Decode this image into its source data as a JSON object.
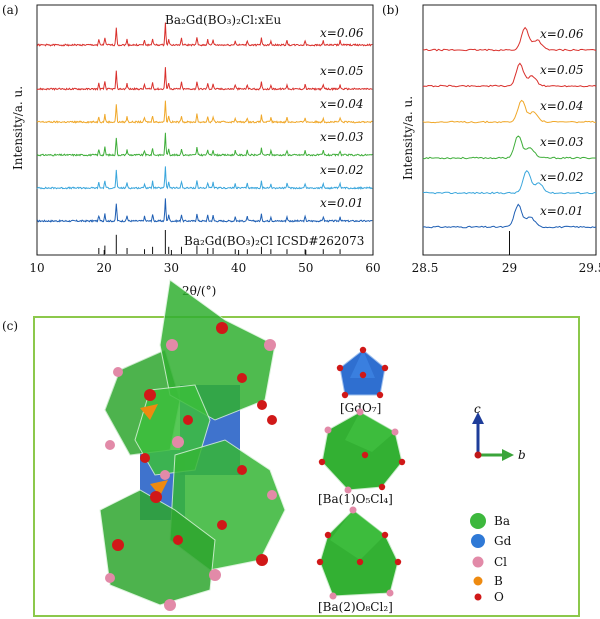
{
  "panel_a": {
    "label": "(a)",
    "title": "Ba₂Gd(BO₃)₂Cl:xEu",
    "reference_label": "Ba₂Gd(BO₃)₂Cl ICSD#262073",
    "xlabel": "2θ/(°)",
    "ylabel": "Intensity/a. u."
  },
  "panel_b": {
    "label": "(b)",
    "ylabel": "Intensity/a. u."
  },
  "panel_c": {
    "label": "(c)",
    "polyhedra": {
      "gd": "[GdO₇]",
      "ba1": "[Ba(1)O₅Cl₄]",
      "ba2": "[Ba(2)O₈Cl₂]"
    },
    "axes": {
      "c": "c",
      "b": "b"
    },
    "legend": [
      {
        "name": "Ba",
        "color": "#3db83d"
      },
      {
        "name": "Gd",
        "color": "#2f79d6"
      },
      {
        "name": "Cl",
        "color": "#e28aa8"
      },
      {
        "name": "B",
        "color": "#ee8a10"
      },
      {
        "name": "O",
        "color": "#d01818"
      }
    ]
  },
  "chart_data": [
    {
      "type": "line",
      "xlim": [
        10,
        60
      ],
      "xticks": [
        "10",
        "20",
        "30",
        "40",
        "50",
        "60"
      ],
      "series": [
        {
          "name": "x=0.01",
          "color": "#1f5fb4"
        },
        {
          "name": "x=0.02",
          "color": "#3aa6dc"
        },
        {
          "name": "x=0.03",
          "color": "#3fae3a"
        },
        {
          "name": "x=0.04",
          "color": "#f0a82a"
        },
        {
          "name": "x=0.05",
          "color": "#d9302c"
        },
        {
          "name": "x=0.06",
          "color": "#d9302c"
        }
      ],
      "reference_peaks": [
        {
          "x": 19.2,
          "h": 0.25
        },
        {
          "x": 20.1,
          "h": 0.35
        },
        {
          "x": 21.8,
          "h": 0.8
        },
        {
          "x": 23.4,
          "h": 0.25
        },
        {
          "x": 26.0,
          "h": 0.2
        },
        {
          "x": 27.2,
          "h": 0.3
        },
        {
          "x": 29.1,
          "h": 1.0
        },
        {
          "x": 29.6,
          "h": 0.3
        },
        {
          "x": 31.5,
          "h": 0.3
        },
        {
          "x": 33.8,
          "h": 0.35
        },
        {
          "x": 35.4,
          "h": 0.25
        },
        {
          "x": 36.2,
          "h": 0.25
        },
        {
          "x": 39.5,
          "h": 0.2
        },
        {
          "x": 41.3,
          "h": 0.2
        },
        {
          "x": 43.4,
          "h": 0.3
        },
        {
          "x": 44.8,
          "h": 0.2
        },
        {
          "x": 47.2,
          "h": 0.2
        },
        {
          "x": 49.9,
          "h": 0.2
        },
        {
          "x": 52.6,
          "h": 0.2
        },
        {
          "x": 55.1,
          "h": 0.2
        }
      ]
    },
    {
      "type": "line",
      "xlim": [
        28.5,
        29.5
      ],
      "xticks": [
        "28.5",
        "29",
        "29.5"
      ],
      "series": [
        {
          "name": "x=0.01",
          "color": "#1f5fb4",
          "peak": 29.05
        },
        {
          "name": "x=0.02",
          "color": "#3aa6dc",
          "peak": 29.1
        },
        {
          "name": "x=0.03",
          "color": "#3fae3a",
          "peak": 29.05
        },
        {
          "name": "x=0.04",
          "color": "#f0a82a",
          "peak": 29.07
        },
        {
          "name": "x=0.05",
          "color": "#d9302c",
          "peak": 29.06
        },
        {
          "name": "x=0.06",
          "color": "#d9302c",
          "peak": 29.09
        }
      ],
      "reference_peak": 29.0
    }
  ]
}
